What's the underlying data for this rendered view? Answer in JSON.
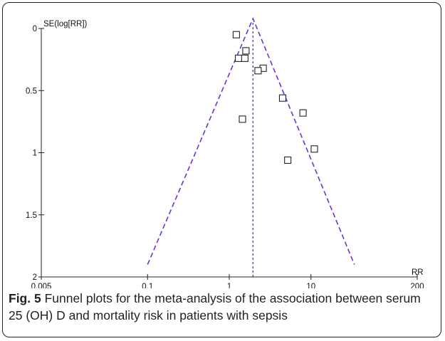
{
  "chart_data": {
    "type": "scatter",
    "subtype": "funnel",
    "x_label": "RR",
    "y_label": "SE(log[RR])",
    "x_scale": "log",
    "x_ticks": [
      {
        "value": 0.005,
        "label": "0.005"
      },
      {
        "value": 0.1,
        "label": "0.1"
      },
      {
        "value": 1,
        "label": "1"
      },
      {
        "value": 10,
        "label": "10"
      },
      {
        "value": 200,
        "label": "200"
      }
    ],
    "y_ticks": [
      {
        "value": 0,
        "label": "0"
      },
      {
        "value": 0.5,
        "label": "0.5"
      },
      {
        "value": 1,
        "label": "1"
      },
      {
        "value": 1.5,
        "label": "1.5"
      },
      {
        "value": 2,
        "label": "2"
      }
    ],
    "x_range": [
      0.005,
      200
    ],
    "y_range": [
      0,
      2
    ],
    "y_inverted": true,
    "pooled_rr": 1.95,
    "funnel": {
      "apex": [
        1.95,
        -0.08
      ],
      "left_base": [
        0.1,
        1.9
      ],
      "right_base": [
        34,
        1.9
      ]
    },
    "points": [
      {
        "rr": 1.22,
        "se": 0.05
      },
      {
        "rr": 1.6,
        "se": 0.18
      },
      {
        "rr": 1.3,
        "se": 0.24
      },
      {
        "rr": 1.55,
        "se": 0.24
      },
      {
        "rr": 2.6,
        "se": 0.32
      },
      {
        "rr": 2.25,
        "se": 0.34
      },
      {
        "rr": 4.5,
        "se": 0.56
      },
      {
        "rr": 8.0,
        "se": 0.68
      },
      {
        "rr": 1.45,
        "se": 0.73
      },
      {
        "rr": 11.0,
        "se": 0.97
      },
      {
        "rr": 5.2,
        "se": 1.06
      }
    ],
    "colors": {
      "funnel": "#7030d8",
      "pooled_line": "#2a2ad0",
      "points": "#222222",
      "axes": "#222222"
    }
  },
  "caption": {
    "label": "Fig. 5",
    "text": " Funnel plots for the meta-analysis of the association between serum 25 (OH) D and mortality risk in patients with sepsis"
  }
}
